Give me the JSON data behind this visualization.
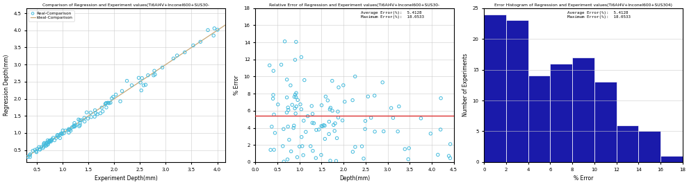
{
  "plot1": {
    "title": "Comparison of Regression and Experiment values(Ti6Al4V+Inconel600+SUS30-",
    "xlabel": "Experiment Depth(mm)",
    "ylabel": "Regression Depth(mm)",
    "xlim": [
      0.3,
      4.15
    ],
    "ylim": [
      0.15,
      4.65
    ],
    "ideal_line_color": "#c8a878",
    "scatter_color": "#44bbdd",
    "legend_real": "Real-Comparison",
    "legend_ideal": "Ideal-Comparison",
    "xticks": [
      0.5,
      1.0,
      1.5,
      2.0,
      2.5,
      3.0,
      3.5,
      4.0
    ],
    "yticks": [
      0.5,
      1.0,
      1.5,
      2.0,
      2.5,
      3.0,
      3.5,
      4.0,
      4.5
    ]
  },
  "plot2": {
    "title": "Relative Error of Regression and Experiment values(Ti6Al4V+Inconel600+SUS30-",
    "xlabel": "Depth(mm)",
    "ylabel": "% Error",
    "xlim": [
      0.0,
      4.5
    ],
    "ylim": [
      0.0,
      18.0
    ],
    "scatter_color": "#44bbdd",
    "hline_y": 5.4128,
    "hline_color": "#dd3333",
    "avg_error": 5.4128,
    "max_error": 18.0533,
    "xticks": [
      0.0,
      0.5,
      1.0,
      1.5,
      2.0,
      2.5,
      3.0,
      3.5,
      4.0,
      4.5
    ],
    "yticks": [
      0,
      2,
      4,
      6,
      8,
      10,
      12,
      14,
      16,
      18
    ]
  },
  "plot3": {
    "title": "Error Histogram of Regression and Experiment values(Ti6Al4V+Inconel600+SUS304)",
    "xlabel": "% Error",
    "ylabel": "Number of Experiments",
    "bar_color": "#1a1aaa",
    "bar_left": [
      0,
      2,
      4,
      6,
      8,
      10,
      12,
      14,
      16
    ],
    "bar_counts": [
      24,
      23,
      14,
      16,
      17,
      13,
      6,
      5,
      1
    ],
    "bar_width": 2.0,
    "avg_error": 5.4128,
    "max_error": 18.0533,
    "xlim": [
      0,
      18
    ],
    "ylim": [
      0,
      25
    ],
    "xticks": [
      0,
      2,
      4,
      6,
      8,
      10,
      12,
      14,
      16,
      18
    ],
    "yticks": [
      0,
      5,
      10,
      15,
      20,
      25
    ]
  }
}
